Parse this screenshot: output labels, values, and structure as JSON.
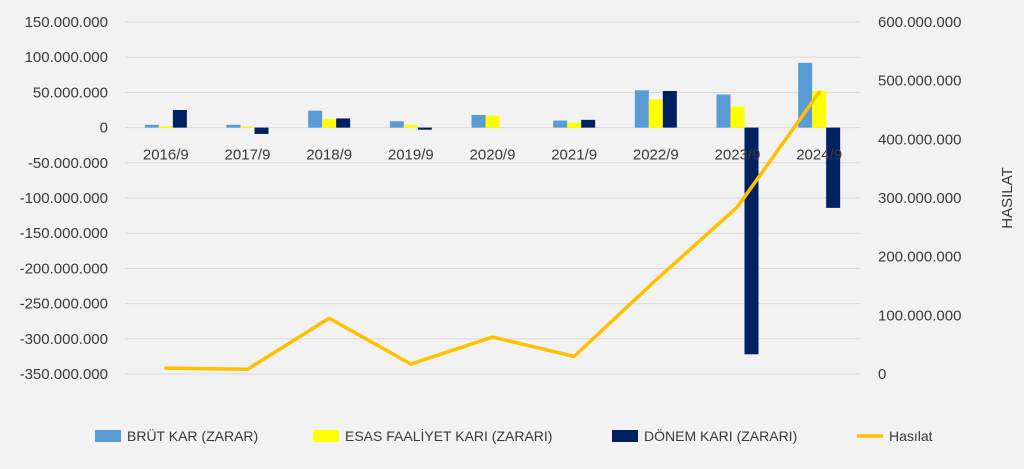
{
  "chart_data": {
    "type": "bar",
    "title": "",
    "categories": [
      "2016/9",
      "2017/9",
      "2018/9",
      "2019/9",
      "2020/9",
      "2021/9",
      "2022/9",
      "2023/9",
      "2024/9"
    ],
    "series": [
      {
        "name": "BRÜT KAR (ZARAR)",
        "type": "bar",
        "axis": "left",
        "color": "#5b9bd5",
        "values": [
          4000000,
          4000000,
          24000000,
          9000000,
          18000000,
          10000000,
          53000000,
          47000000,
          92000000
        ]
      },
      {
        "name": "ESAS FAALİYET KARI (ZARARI)",
        "type": "bar",
        "axis": "left",
        "color": "#ffff00",
        "values": [
          2000000,
          1500000,
          12000000,
          4000000,
          17000000,
          7000000,
          40000000,
          30000000,
          52000000
        ]
      },
      {
        "name": "DÖNEM KARI (ZARARI)",
        "type": "bar",
        "axis": "left",
        "color": "#002060",
        "values": [
          25000000,
          -9000000,
          13000000,
          -3000000,
          0,
          11000000,
          52000000,
          -322000000,
          -114000000
        ]
      },
      {
        "name": "Hasılat",
        "type": "line",
        "axis": "right",
        "color": "#ffc000",
        "values": [
          10000000,
          8000000,
          95000000,
          17000000,
          63000000,
          30000000,
          160000000,
          285000000,
          480000000
        ]
      }
    ],
    "y_left": {
      "min": -350000000,
      "max": 150000000,
      "step": 50000000,
      "tick_labels": [
        "150.000.000",
        "100.000.000",
        "50.000.000",
        "0",
        "-50.000.000",
        "-100.000.000",
        "-150.000.000",
        "-200.000.000",
        "-250.000.000",
        "-300.000.000",
        "-350.000.000"
      ]
    },
    "y_right": {
      "min": 0,
      "max": 600000000,
      "step": 100000000,
      "label": "HASILAT",
      "tick_labels": [
        "600.000.000",
        "500.000.000",
        "400.000.000",
        "300.000.000",
        "200.000.000",
        "100.000.000",
        "0"
      ]
    },
    "xlabel": "",
    "ylabel": "",
    "legend_position": "bottom",
    "grid": true
  }
}
